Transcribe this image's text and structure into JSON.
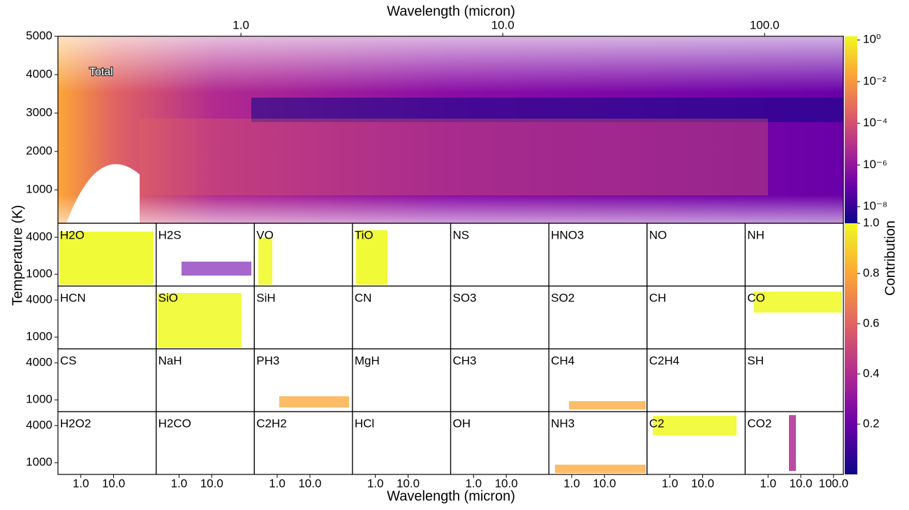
{
  "chart_data": {
    "type": "heatmap",
    "xlabel_top": "Wavelength (micron)",
    "xlabel": "Wavelength (micron)",
    "ylabel": "Temperature (K)",
    "xscale": "log",
    "xlim": [
      0.2,
      200
    ],
    "xticks": [
      {
        "value": 1,
        "label": "1.0"
      },
      {
        "value": 10,
        "label": "10.0"
      },
      {
        "value": 100,
        "label": "100.0"
      }
    ],
    "main_panel": {
      "label": "Total",
      "ylim": [
        130,
        5000
      ],
      "yticks": [
        1000,
        2000,
        3000,
        4000,
        5000
      ]
    },
    "panels": {
      "ylim": [
        50,
        5130
      ],
      "yticks": [
        1000,
        4000
      ],
      "labels": [
        "H2O",
        "H2S",
        "VO",
        "TiO",
        "NS",
        "HNO3",
        "NO",
        "NH",
        "HCN",
        "SiO",
        "SiH",
        "CN",
        "SO3",
        "SO2",
        "CH",
        "CO",
        "CS",
        "NaH",
        "PH3",
        "MgH",
        "CH3",
        "CH4",
        "C2H4",
        "SH",
        "H2O2",
        "H2CO",
        "C2H2",
        "HCl",
        "OH",
        "NH3",
        "C2",
        "CO2"
      ]
    },
    "colorbar_total": {
      "scale": "log",
      "lim": [
        1.6e-09,
        1.5
      ],
      "ticks": [
        {
          "value": 1,
          "label": "10⁰"
        },
        {
          "value": 0.01,
          "label": "10⁻²"
        },
        {
          "value": 0.0001,
          "label": "10⁻⁴"
        },
        {
          "value": 1e-06,
          "label": "10⁻⁶"
        },
        {
          "value": 1e-08,
          "label": "10⁻⁸"
        }
      ]
    },
    "colorbar": {
      "label": "Contribution",
      "scale": "linear",
      "lim": [
        0,
        1
      ],
      "ticks": [
        0.2,
        0.4,
        0.6,
        0.8,
        {
          "value": 1,
          "label": "1.0"
        }
      ]
    },
    "colormap": [
      "#0d0887",
      "#6a00a8",
      "#b12a90",
      "#e16462",
      "#fca636",
      "#f0f921"
    ]
  }
}
